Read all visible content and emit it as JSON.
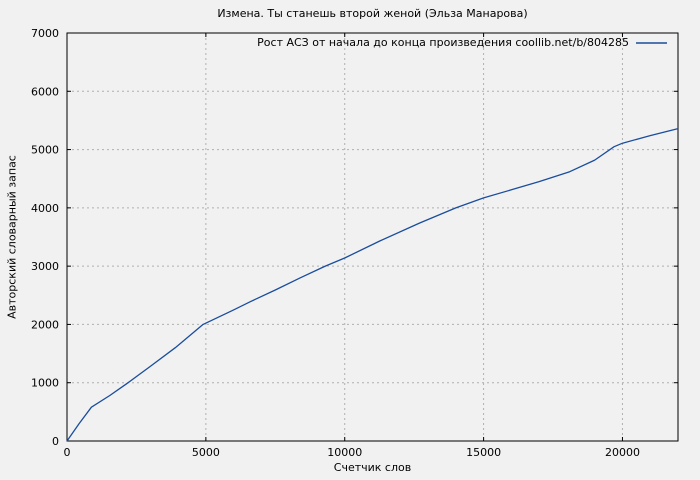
{
  "window": {
    "background": "#f1f1f1"
  },
  "chart_data": {
    "type": "line",
    "title": "Измена. Ты станешь второй женой (Эльза Манарова)",
    "xlabel": "Счетчик слов",
    "ylabel": "Авторский словарный запас",
    "xlim": [
      0,
      22000
    ],
    "ylim": [
      0,
      7000
    ],
    "xticks": [
      0,
      5000,
      10000,
      15000,
      20000
    ],
    "yticks": [
      0,
      1000,
      2000,
      3000,
      4000,
      5000,
      6000,
      7000
    ],
    "grid": true,
    "legend_position": "top-right-inside",
    "colors": {
      "grid": "#b0b0b0",
      "border": "#000000",
      "text": "#000000",
      "background": "#f1f1f1"
    },
    "series": [
      {
        "name": "Рост АСЗ от начала до конца произведения coollib.net/b/804285",
        "color": "#1a4d9d",
        "x": [
          0,
          440,
          880,
          1540,
          2200,
          3000,
          3900,
          4900,
          6000,
          6600,
          7500,
          8400,
          9300,
          10000,
          11300,
          12700,
          14000,
          15000,
          16000,
          17000,
          18100,
          19000,
          19700,
          20000,
          21000,
          22000
        ],
        "y": [
          0,
          300,
          580,
          780,
          1000,
          1280,
          1600,
          2000,
          2250,
          2390,
          2590,
          2800,
          3000,
          3140,
          3440,
          3740,
          4000,
          4170,
          4310,
          4450,
          4620,
          4820,
          5050,
          5110,
          5240,
          5360
        ]
      }
    ]
  }
}
